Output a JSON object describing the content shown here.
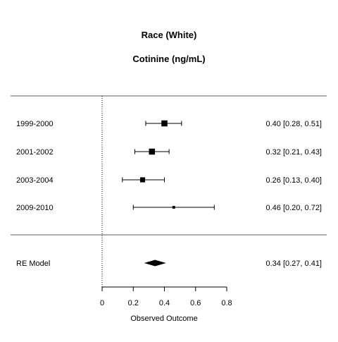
{
  "chart_data": {
    "type": "forest",
    "title": "Race (White)",
    "subtitle": "Cotinine (ng/mL)",
    "xlabel": "Observed Outcome",
    "xlim": [
      0,
      0.8
    ],
    "xticks": [
      0,
      0.2,
      0.4,
      0.6,
      0.8
    ],
    "xtick_labels": [
      "0",
      "0.2",
      "0.4",
      "0.6",
      "0.8"
    ],
    "reference_line": 0,
    "studies": [
      {
        "label": "1999-2000",
        "estimate": 0.4,
        "ci_low": 0.28,
        "ci_high": 0.51,
        "text": "0.40 [0.28, 0.51]",
        "weight": 10
      },
      {
        "label": "2001-2002",
        "estimate": 0.32,
        "ci_low": 0.21,
        "ci_high": 0.43,
        "text": "0.32 [0.21, 0.43]",
        "weight": 10
      },
      {
        "label": "2003-2004",
        "estimate": 0.26,
        "ci_low": 0.13,
        "ci_high": 0.4,
        "text": "0.26 [0.13, 0.40]",
        "weight": 7
      },
      {
        "label": "2009-2010",
        "estimate": 0.46,
        "ci_low": 0.2,
        "ci_high": 0.72,
        "text": "0.46 [0.20, 0.72]",
        "weight": 2
      }
    ],
    "summary": {
      "label": "RE Model",
      "estimate": 0.34,
      "ci_low": 0.27,
      "ci_high": 0.41,
      "text": "0.34 [0.27, 0.41]"
    }
  }
}
